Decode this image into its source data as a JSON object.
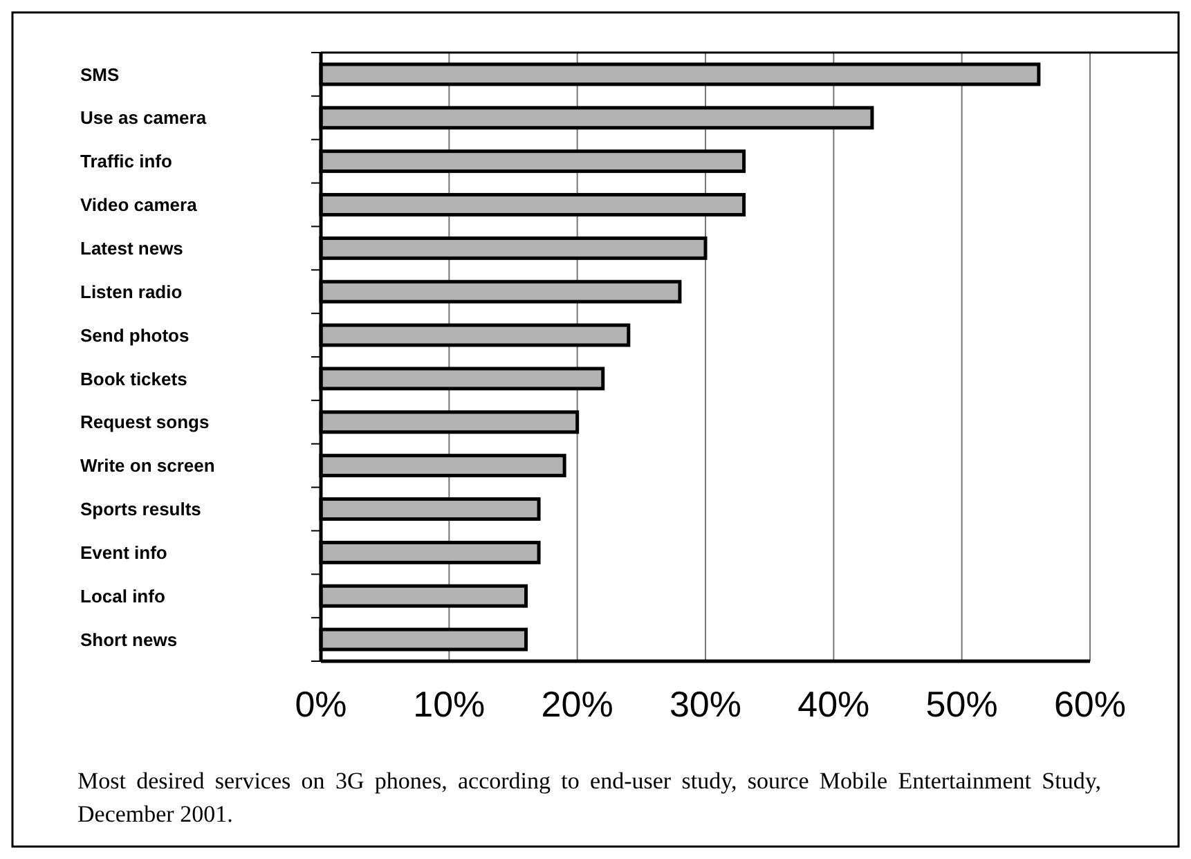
{
  "chart_data": {
    "type": "bar",
    "orientation": "horizontal",
    "categories": [
      "SMS",
      "Use as camera",
      "Traffic info",
      "Video camera",
      "Latest news",
      "Listen radio",
      "Send photos",
      "Book tickets",
      "Request songs",
      "Write on screen",
      "Sports results",
      "Event info",
      "Local info",
      "Short news"
    ],
    "values": [
      56,
      43,
      33,
      33,
      30,
      28,
      24,
      22,
      20,
      19,
      17,
      17,
      16,
      16
    ],
    "color": "#b2b2b2",
    "xlim": [
      0,
      60
    ],
    "xticks": [
      {
        "value": 0,
        "label": "0%"
      },
      {
        "value": 10,
        "label": "10%"
      },
      {
        "value": 20,
        "label": "20%"
      },
      {
        "value": 30,
        "label": "30%"
      },
      {
        "value": 40,
        "label": "40%"
      },
      {
        "value": 50,
        "label": "50%"
      },
      {
        "value": 60,
        "label": "60%"
      }
    ],
    "grid": "x",
    "annotations": [
      "Most desired services on 3G phones, according to end-user study, source Mobile Entertainment Study, December 2001."
    ]
  }
}
